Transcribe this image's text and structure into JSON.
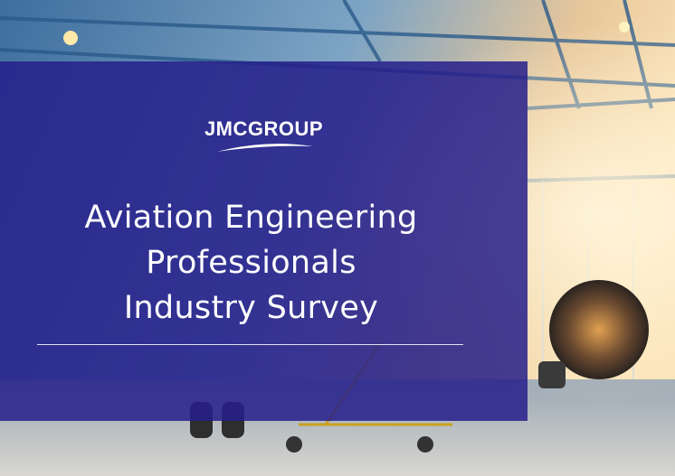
{
  "logo": {
    "text": "JMCGROUP"
  },
  "title": {
    "lines": [
      "Aviation Engineering",
      "Professionals",
      "Industry Survey"
    ]
  }
}
